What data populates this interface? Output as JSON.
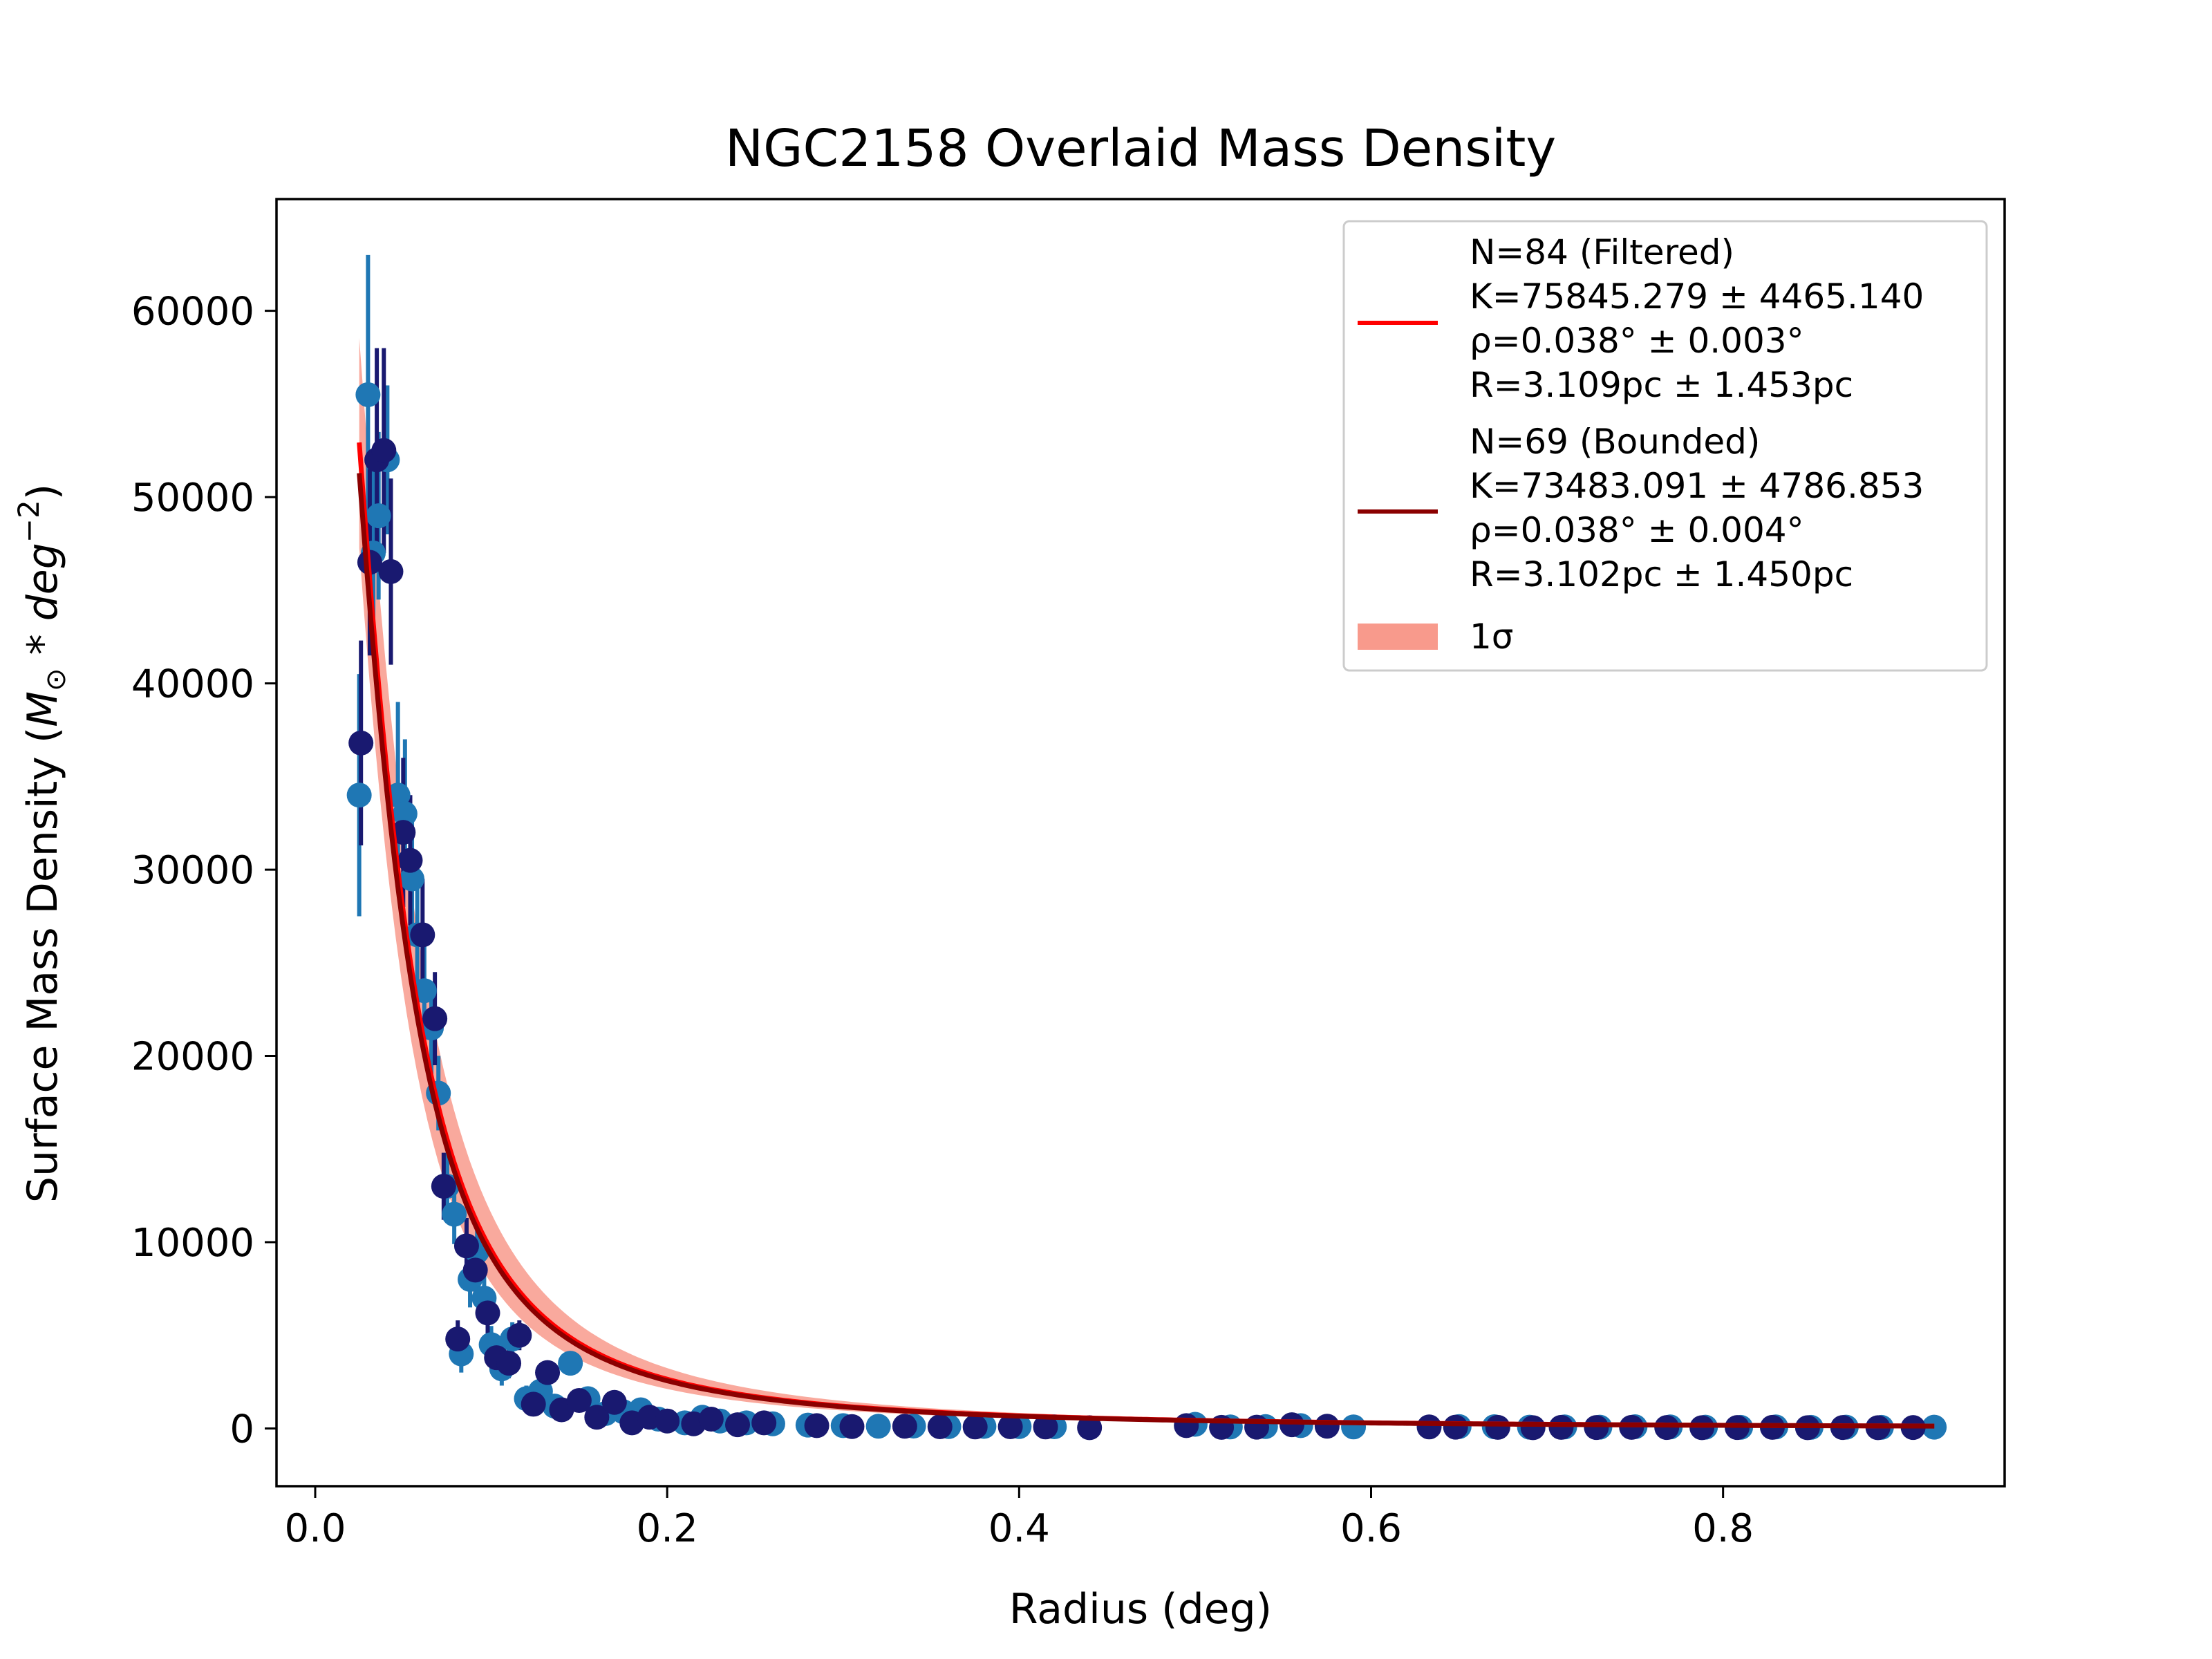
{
  "chart_data": {
    "type": "scatter",
    "title": "NGC2158 Overlaid Mass Density",
    "xlabel": "Radius (deg)",
    "ylabel": "Surface Mass Density (M⊙ * deg⁻²)",
    "xlim": [
      -0.022,
      0.96
    ],
    "ylim": [
      -3100,
      66000
    ],
    "xticks": [
      0.0,
      0.2,
      0.4,
      0.6,
      0.8
    ],
    "xtick_labels": [
      "0.0",
      "0.2",
      "0.4",
      "0.6",
      "0.8"
    ],
    "yticks": [
      0,
      10000,
      20000,
      30000,
      40000,
      50000,
      60000
    ],
    "ytick_labels": [
      "0",
      "10000",
      "20000",
      "30000",
      "40000",
      "50000",
      "60000"
    ],
    "grid": false,
    "legend_position": "top-right",
    "legend": {
      "filtered": {
        "lines": [
          "N=84 (Filtered)",
          "K=75845.279 ± 4465.140",
          "ρ=0.038° ± 0.003°",
          "R=3.109pc ± 1.453pc"
        ],
        "color": "#ff0000"
      },
      "bounded": {
        "lines": [
          "N=69 (Bounded)",
          "K=73483.091 ± 4786.853",
          "ρ=0.038° ± 0.004°",
          "R=3.102pc ± 1.450pc"
        ],
        "color": "#8b0000"
      },
      "sigma": {
        "label": "1σ",
        "color": "#f89a8c"
      }
    },
    "series": [
      {
        "kind": "scatter-errorbar",
        "color": "#1f77b4",
        "points": [
          [
            0.025,
            34000,
            6500
          ],
          [
            0.03,
            55500,
            7500
          ],
          [
            0.033,
            47000,
            5000
          ],
          [
            0.036,
            49000,
            4500
          ],
          [
            0.041,
            52000,
            4000
          ],
          [
            0.047,
            34000,
            5000
          ],
          [
            0.051,
            33000,
            4000
          ],
          [
            0.055,
            29500,
            3500
          ],
          [
            0.058,
            26500,
            3000
          ],
          [
            0.062,
            23500,
            2500
          ],
          [
            0.066,
            21500,
            2500
          ],
          [
            0.07,
            18000,
            2000
          ],
          [
            0.075,
            13000,
            1800
          ],
          [
            0.079,
            11500,
            1600
          ],
          [
            0.083,
            4000,
            1000
          ],
          [
            0.088,
            8000,
            1500
          ],
          [
            0.092,
            9500,
            1500
          ],
          [
            0.096,
            7000,
            1200
          ],
          [
            0.1,
            4500,
            1000
          ],
          [
            0.106,
            3200,
            900
          ],
          [
            0.112,
            4800,
            900
          ],
          [
            0.12,
            1600,
            700
          ],
          [
            0.128,
            2000,
            600
          ],
          [
            0.136,
            1200,
            500
          ],
          [
            0.145,
            3500,
            500
          ],
          [
            0.155,
            1600,
            400
          ],
          [
            0.165,
            800,
            300
          ],
          [
            0.175,
            900,
            300
          ],
          [
            0.185,
            1000,
            300
          ],
          [
            0.195,
            500,
            250
          ],
          [
            0.21,
            300,
            200
          ],
          [
            0.22,
            600,
            200
          ],
          [
            0.23,
            400,
            150
          ],
          [
            0.245,
            300,
            150
          ],
          [
            0.26,
            250,
            150
          ],
          [
            0.28,
            180,
            100
          ],
          [
            0.3,
            150,
            100
          ],
          [
            0.32,
            120,
            100
          ],
          [
            0.34,
            130,
            80
          ],
          [
            0.36,
            100,
            80
          ],
          [
            0.38,
            110,
            80
          ],
          [
            0.4,
            100,
            70
          ],
          [
            0.42,
            90,
            70
          ],
          [
            0.5,
            220,
            60
          ],
          [
            0.52,
            80,
            60
          ],
          [
            0.54,
            100,
            60
          ],
          [
            0.56,
            150,
            60
          ],
          [
            0.59,
            80,
            50
          ],
          [
            0.65,
            100,
            50
          ],
          [
            0.67,
            90,
            50
          ],
          [
            0.69,
            70,
            50
          ],
          [
            0.71,
            80,
            50
          ],
          [
            0.73,
            70,
            50
          ],
          [
            0.75,
            90,
            50
          ],
          [
            0.77,
            80,
            50
          ],
          [
            0.79,
            70,
            50
          ],
          [
            0.81,
            60,
            40
          ],
          [
            0.83,
            80,
            40
          ],
          [
            0.85,
            60,
            40
          ],
          [
            0.87,
            70,
            40
          ],
          [
            0.89,
            60,
            40
          ],
          [
            0.92,
            70,
            40
          ]
        ]
      },
      {
        "kind": "scatter-errorbar",
        "color": "#191970",
        "points": [
          [
            0.026,
            36800,
            5500
          ],
          [
            0.031,
            46500,
            5000
          ],
          [
            0.035,
            52000,
            6000
          ],
          [
            0.039,
            52500,
            5500
          ],
          [
            0.043,
            46000,
            5000
          ],
          [
            0.05,
            32000,
            4000
          ],
          [
            0.054,
            30500,
            3500
          ],
          [
            0.061,
            26500,
            3000
          ],
          [
            0.068,
            22000,
            2500
          ],
          [
            0.073,
            13000,
            1800
          ],
          [
            0.081,
            4800,
            1000
          ],
          [
            0.086,
            9800,
            1500
          ],
          [
            0.091,
            8500,
            1300
          ],
          [
            0.098,
            6200,
            1100
          ],
          [
            0.103,
            3800,
            900
          ],
          [
            0.11,
            3500,
            800
          ],
          [
            0.116,
            5000,
            800
          ],
          [
            0.124,
            1300,
            600
          ],
          [
            0.132,
            3000,
            500
          ],
          [
            0.14,
            1000,
            400
          ],
          [
            0.15,
            1500,
            400
          ],
          [
            0.16,
            600,
            300
          ],
          [
            0.17,
            1400,
            300
          ],
          [
            0.18,
            300,
            200
          ],
          [
            0.19,
            600,
            200
          ],
          [
            0.2,
            400,
            200
          ],
          [
            0.215,
            250,
            150
          ],
          [
            0.225,
            500,
            150
          ],
          [
            0.24,
            200,
            120
          ],
          [
            0.255,
            300,
            120
          ],
          [
            0.285,
            150,
            100
          ],
          [
            0.305,
            100,
            80
          ],
          [
            0.335,
            120,
            80
          ],
          [
            0.355,
            90,
            70
          ],
          [
            0.375,
            80,
            70
          ],
          [
            0.395,
            90,
            60
          ],
          [
            0.415,
            80,
            60
          ],
          [
            0.44,
            40,
            60
          ],
          [
            0.495,
            150,
            60
          ],
          [
            0.515,
            60,
            50
          ],
          [
            0.535,
            70,
            50
          ],
          [
            0.555,
            200,
            50
          ],
          [
            0.575,
            120,
            50
          ],
          [
            0.633,
            80,
            40
          ],
          [
            0.648,
            70,
            40
          ],
          [
            0.672,
            60,
            40
          ],
          [
            0.692,
            40,
            40
          ],
          [
            0.708,
            60,
            40
          ],
          [
            0.728,
            50,
            40
          ],
          [
            0.748,
            60,
            40
          ],
          [
            0.768,
            50,
            40
          ],
          [
            0.788,
            40,
            40
          ],
          [
            0.808,
            50,
            40
          ],
          [
            0.828,
            60,
            40
          ],
          [
            0.848,
            40,
            40
          ],
          [
            0.868,
            50,
            40
          ],
          [
            0.888,
            40,
            40
          ],
          [
            0.908,
            50,
            40
          ]
        ]
      },
      {
        "name": "N=84 (Filtered)",
        "kind": "fit",
        "model": "K / (1 + (r/rho)^2)",
        "K": 75845.279,
        "rho": 0.038,
        "x_range": [
          0.025,
          0.92
        ],
        "color": "#ff0000"
      },
      {
        "name": "N=69 (Bounded)",
        "kind": "fit",
        "model": "K / (1 + (r/rho)^2)",
        "K": 73483.091,
        "rho": 0.038,
        "x_range": [
          0.025,
          0.92
        ],
        "color": "#8b0000"
      },
      {
        "name": "1σ",
        "kind": "band",
        "model": "K / (1 + (r/rho)^2)",
        "K_range": [
          71380.139,
          80310.419
        ],
        "rho_range": [
          0.035,
          0.041
        ],
        "x_range": [
          0.025,
          0.92
        ],
        "color": "#f89a8c"
      }
    ]
  }
}
